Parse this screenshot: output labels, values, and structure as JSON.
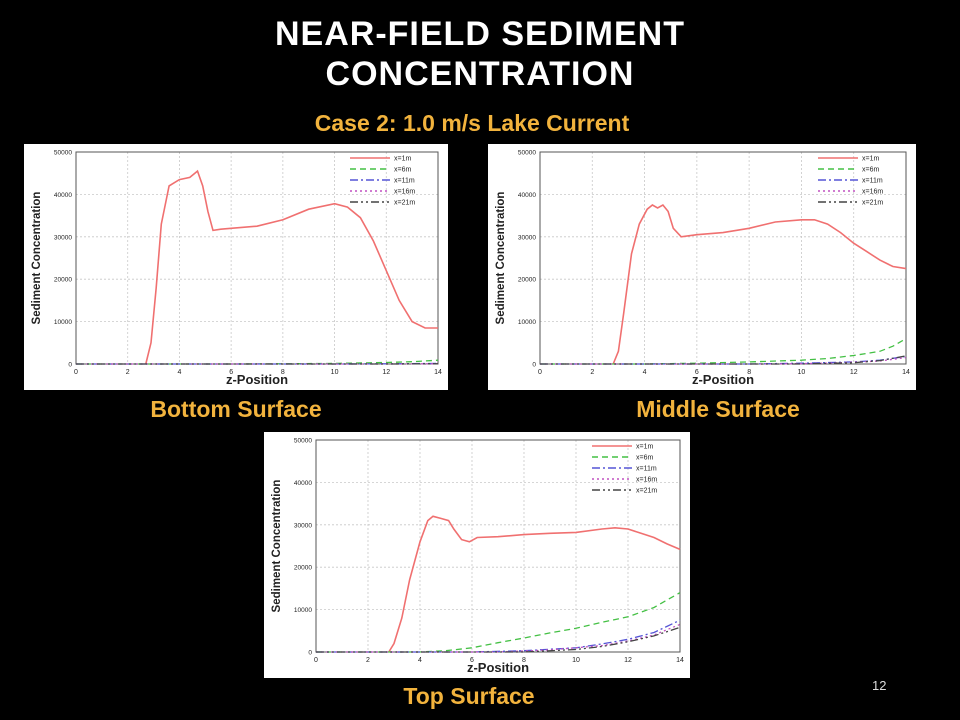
{
  "slide": {
    "title_line1": "NEAR-FIELD SEDIMENT",
    "title_line2": "CONCENTRATION",
    "subtitle": "Case 2:  1.0 m/s Lake Current",
    "page_number": "12",
    "accent_color": "#f2b33d"
  },
  "chart_data": [
    {
      "type": "line",
      "caption": "Bottom Surface",
      "xlabel": "z-Position",
      "ylabel": "Sediment Concentration",
      "xlim": [
        0,
        14
      ],
      "ylim": [
        0,
        50000
      ],
      "xticks": [
        "0",
        "2",
        "4",
        "6",
        "8",
        "10",
        "12",
        "14"
      ],
      "yticks": [
        "0",
        "10000",
        "20000",
        "30000",
        "40000",
        "50000"
      ],
      "grid": true,
      "legend_position": "top-right",
      "series": [
        {
          "name": "x=1m",
          "color": "#f07070",
          "dash": "solid",
          "x": [
            2.7,
            2.9,
            3.1,
            3.3,
            3.6,
            4.0,
            4.4,
            4.7,
            4.9,
            5.1,
            5.3,
            5.6,
            6.0,
            7.0,
            8.0,
            9.0,
            10.0,
            10.5,
            11.0,
            11.5,
            12.0,
            12.5,
            13.0,
            13.5,
            14.0
          ],
          "y": [
            0,
            5000,
            18000,
            33000,
            42000,
            43500,
            44000,
            45500,
            42000,
            36000,
            31500,
            31800,
            32000,
            32500,
            34000,
            36500,
            37800,
            37000,
            34500,
            29000,
            22000,
            15000,
            10000,
            8500,
            8500
          ]
        },
        {
          "name": "x=6m",
          "color": "#44c044",
          "dash": "6,4",
          "x": [
            0,
            6,
            8,
            10,
            12,
            13,
            14
          ],
          "y": [
            0,
            0,
            50,
            150,
            350,
            550,
            900
          ]
        },
        {
          "name": "x=11m",
          "color": "#5555d5",
          "dash": "8,3,2,3",
          "x": [
            0,
            10,
            12,
            14
          ],
          "y": [
            0,
            0,
            40,
            150
          ]
        },
        {
          "name": "x=16m",
          "color": "#c050c0",
          "dash": "2,3",
          "x": [
            0,
            11,
            13,
            14
          ],
          "y": [
            0,
            0,
            20,
            80
          ]
        },
        {
          "name": "x=21m",
          "color": "#444444",
          "dash": "8,3,2,3,2,3",
          "x": [
            0,
            12,
            14
          ],
          "y": [
            0,
            0,
            50
          ]
        }
      ]
    },
    {
      "type": "line",
      "caption": "Middle Surface",
      "xlabel": "z-Position",
      "ylabel": "Sediment Concentration",
      "xlim": [
        0,
        14
      ],
      "ylim": [
        0,
        50000
      ],
      "xticks": [
        "0",
        "2",
        "4",
        "6",
        "8",
        "10",
        "12",
        "14"
      ],
      "yticks": [
        "0",
        "10000",
        "20000",
        "30000",
        "40000",
        "50000"
      ],
      "grid": true,
      "legend_position": "top-right",
      "series": [
        {
          "name": "x=1m",
          "color": "#f07070",
          "dash": "solid",
          "x": [
            2.8,
            3.0,
            3.2,
            3.5,
            3.8,
            4.1,
            4.3,
            4.5,
            4.7,
            4.9,
            5.1,
            5.4,
            6.0,
            7.0,
            8.0,
            9.0,
            10.0,
            10.5,
            11.0,
            11.5,
            12.0,
            12.5,
            13.0,
            13.5,
            14.0
          ],
          "y": [
            0,
            3000,
            12000,
            26000,
            33000,
            36500,
            37500,
            36800,
            37500,
            36000,
            32000,
            30000,
            30500,
            31000,
            32000,
            33500,
            34000,
            34000,
            33000,
            31000,
            28500,
            26500,
            24500,
            23000,
            22500
          ]
        },
        {
          "name": "x=6m",
          "color": "#44c044",
          "dash": "6,4",
          "x": [
            0,
            4,
            6,
            8,
            10,
            11,
            12,
            13,
            13.5,
            14
          ],
          "y": [
            0,
            0,
            200,
            500,
            900,
            1300,
            2000,
            3000,
            4200,
            6000
          ]
        },
        {
          "name": "x=11m",
          "color": "#5555d5",
          "dash": "8,3,2,3",
          "x": [
            0,
            8,
            10,
            12,
            13,
            14
          ],
          "y": [
            0,
            0,
            200,
            500,
            900,
            1800
          ]
        },
        {
          "name": "x=16m",
          "color": "#c050c0",
          "dash": "2,3",
          "x": [
            0,
            9,
            11,
            13,
            14
          ],
          "y": [
            0,
            0,
            200,
            700,
            1500
          ]
        },
        {
          "name": "x=21m",
          "color": "#444444",
          "dash": "8,3,2,3,2,3",
          "x": [
            0,
            10,
            12,
            13,
            14
          ],
          "y": [
            0,
            0,
            300,
            800,
            1900
          ]
        }
      ]
    },
    {
      "type": "line",
      "caption": "Top Surface",
      "xlabel": "z-Position",
      "ylabel": "Sediment Concentration",
      "xlim": [
        0,
        14
      ],
      "ylim": [
        0,
        50000
      ],
      "xticks": [
        "0",
        "2",
        "4",
        "6",
        "8",
        "10",
        "12",
        "14"
      ],
      "yticks": [
        "0",
        "10000",
        "20000",
        "30000",
        "40000",
        "50000"
      ],
      "grid": true,
      "legend_position": "top-right",
      "series": [
        {
          "name": "x=1m",
          "color": "#f07070",
          "dash": "solid",
          "x": [
            2.8,
            3.0,
            3.3,
            3.6,
            4.0,
            4.3,
            4.5,
            4.8,
            5.1,
            5.3,
            5.6,
            5.9,
            6.2,
            7.0,
            8.0,
            9.0,
            10.0,
            11.0,
            11.5,
            12.0,
            12.5,
            13.0,
            13.5,
            14.0
          ],
          "y": [
            0,
            2000,
            8000,
            17000,
            26000,
            31000,
            32000,
            31500,
            31000,
            29000,
            26500,
            26000,
            27000,
            27200,
            27700,
            28000,
            28200,
            29000,
            29300,
            29000,
            28000,
            27000,
            25500,
            24200
          ]
        },
        {
          "name": "x=6m",
          "color": "#44c044",
          "dash": "6,4",
          "x": [
            0,
            4,
            5,
            6,
            7,
            8,
            9,
            10,
            11,
            12,
            13,
            14
          ],
          "y": [
            0,
            0,
            300,
            1000,
            2200,
            3300,
            4500,
            5600,
            7000,
            8300,
            10500,
            14000
          ]
        },
        {
          "name": "x=11m",
          "color": "#5555d5",
          "dash": "8,3,2,3",
          "x": [
            0,
            6,
            8,
            10,
            11,
            12,
            13,
            14
          ],
          "y": [
            0,
            0,
            300,
            1000,
            1900,
            3000,
            4600,
            7500
          ]
        },
        {
          "name": "x=16m",
          "color": "#c050c0",
          "dash": "2,3",
          "x": [
            0,
            7,
            9,
            11,
            12,
            13,
            14
          ],
          "y": [
            0,
            0,
            500,
            1500,
            2600,
            4000,
            6500
          ]
        },
        {
          "name": "x=21m",
          "color": "#444444",
          "dash": "8,3,2,3,2,3",
          "x": [
            0,
            8,
            10,
            11,
            12,
            13,
            14
          ],
          "y": [
            0,
            0,
            600,
            1300,
            2400,
            3800,
            5800
          ]
        }
      ]
    }
  ]
}
